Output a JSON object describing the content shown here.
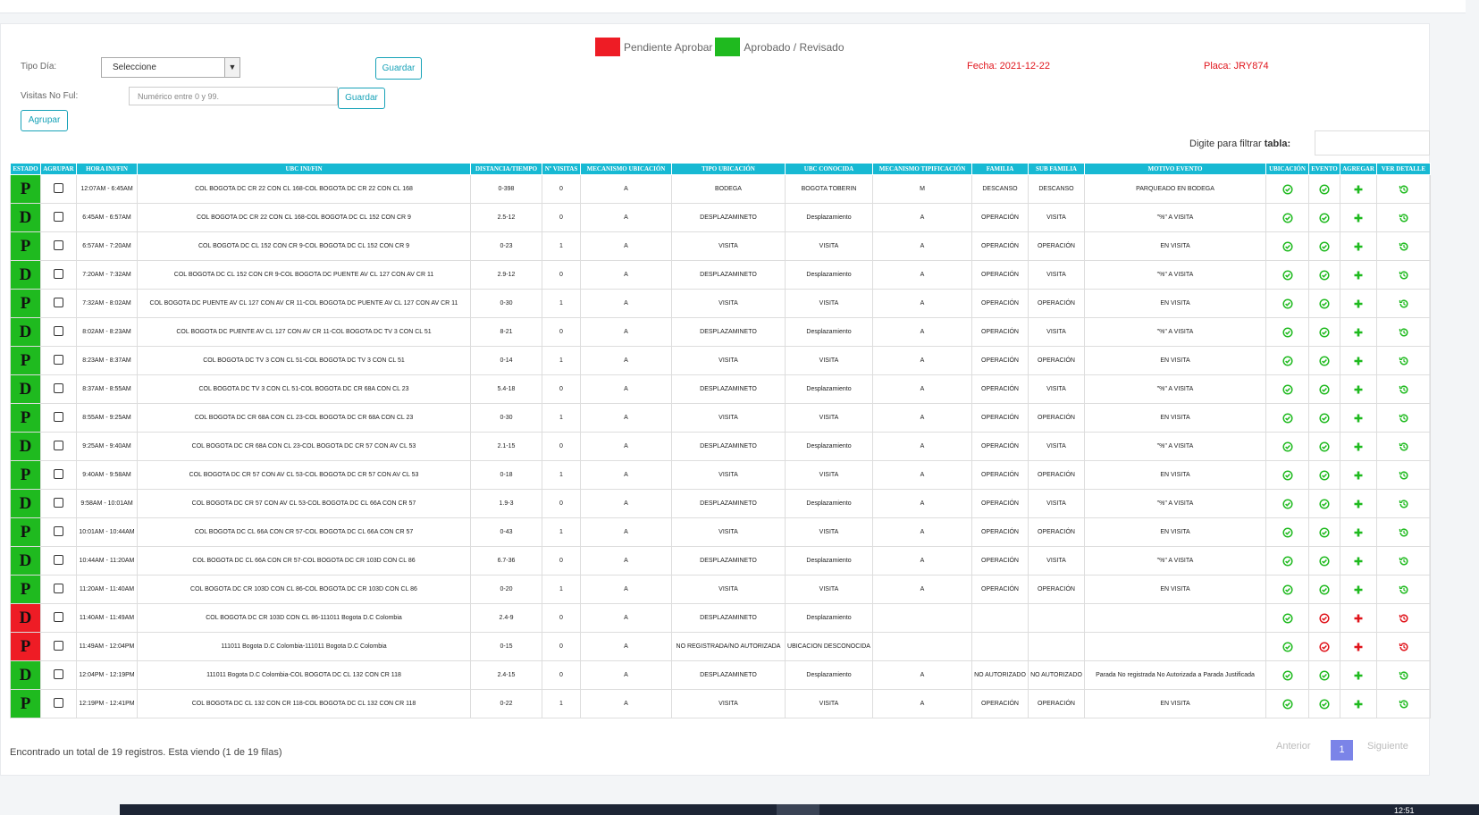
{
  "legend": {
    "pending": "Pendiente Aprobar",
    "approved": "Aprobado / Revisado",
    "pending_color": "#ee1c25",
    "approved_color": "#1fba1f"
  },
  "form": {
    "tipo_dia_label": "Tipo Día:",
    "tipo_dia_value": "Seleccione",
    "visitas_label": "Visitas No Ful:",
    "visitas_placeholder": "Numérico entre 0 y 99.",
    "guardar": "Guardar",
    "agrupar": "Agrupar"
  },
  "info": {
    "fecha": "Fecha: 2021-12-22",
    "placa": "Placa: JRY874"
  },
  "filter": {
    "label": "Digite para filtrar ",
    "label_bold": "tabla:"
  },
  "columns": [
    "ESTADO",
    "AGRUPAR",
    "HORA INI/FIN",
    "UBC INI/FIN",
    "DISTANCIA/TIEMPO",
    "Nº VISITAS",
    "MECANISMO UBICACIÓN",
    "TIPO UBICACIÓN",
    "UBC CONOCIDA",
    "MECANISMO TIPIFICACIÓN",
    "FAMILIA",
    "SUB FAMILIA",
    "MOTIVO EVENTO",
    "UBICACIÓN",
    "EVENTO",
    "AGREGAR",
    "VER DETALLE"
  ],
  "rows": [
    {
      "estado": "P",
      "color": "g",
      "hora": "12:07AM - 6:45AM",
      "ubc": "COL BOGOTA DC CR 22 CON CL 168-COL BOGOTA DC CR 22 CON CL 168",
      "dist": "0-398",
      "visitas": "0",
      "mec": "A",
      "tipo": "BODEGA",
      "conocida": "BOGOTA TOBERIN",
      "tip": "M",
      "familia": "DESCANSO",
      "sub": "DESCANSO",
      "motivo": "PARQUEADO EN BODEGA",
      "ok": true
    },
    {
      "estado": "D",
      "color": "g",
      "hora": "6:45AM - 6:57AM",
      "ubc": "COL BOGOTA DC CR 22 CON CL 168-COL BOGOTA DC CL 152 CON CR 9",
      "dist": "2.5-12",
      "visitas": "0",
      "mec": "A",
      "tipo": "DESPLAZAMINETO",
      "conocida": "Desplazamiento",
      "tip": "A",
      "familia": "OPERACIÓN",
      "sub": "VISITA",
      "motivo": "\"%\" A VISITA",
      "ok": true
    },
    {
      "estado": "P",
      "color": "g",
      "hora": "6:57AM - 7:20AM",
      "ubc": "COL BOGOTA DC CL 152 CON CR 9-COL BOGOTA DC CL 152 CON CR 9",
      "dist": "0-23",
      "visitas": "1",
      "mec": "A",
      "tipo": "VISITA",
      "conocida": "VISITA",
      "tip": "A",
      "familia": "OPERACIÓN",
      "sub": "OPERACIÓN",
      "motivo": "EN VISITA",
      "ok": true
    },
    {
      "estado": "D",
      "color": "g",
      "hora": "7:20AM - 7:32AM",
      "ubc": "COL BOGOTA DC CL 152 CON CR 9-COL BOGOTA DC PUENTE AV CL 127 CON AV CR 11",
      "dist": "2.9-12",
      "visitas": "0",
      "mec": "A",
      "tipo": "DESPLAZAMINETO",
      "conocida": "Desplazamiento",
      "tip": "A",
      "familia": "OPERACIÓN",
      "sub": "VISITA",
      "motivo": "\"%\" A VISITA",
      "ok": true
    },
    {
      "estado": "P",
      "color": "g",
      "hora": "7:32AM - 8:02AM",
      "ubc": "COL BOGOTA DC PUENTE AV CL 127 CON AV CR 11-COL BOGOTA DC PUENTE AV CL 127 CON AV CR 11",
      "dist": "0-30",
      "visitas": "1",
      "mec": "A",
      "tipo": "VISITA",
      "conocida": "VISITA",
      "tip": "A",
      "familia": "OPERACIÓN",
      "sub": "OPERACIÓN",
      "motivo": "EN VISITA",
      "ok": true
    },
    {
      "estado": "D",
      "color": "g",
      "hora": "8:02AM - 8:23AM",
      "ubc": "COL BOGOTA DC PUENTE AV CL 127 CON AV CR 11-COL BOGOTA DC TV 3 CON CL 51",
      "dist": "8-21",
      "visitas": "0",
      "mec": "A",
      "tipo": "DESPLAZAMINETO",
      "conocida": "Desplazamiento",
      "tip": "A",
      "familia": "OPERACIÓN",
      "sub": "VISITA",
      "motivo": "\"%\" A VISITA",
      "ok": true
    },
    {
      "estado": "P",
      "color": "g",
      "hora": "8:23AM - 8:37AM",
      "ubc": "COL BOGOTA DC TV 3 CON CL 51-COL BOGOTA DC TV 3 CON CL 51",
      "dist": "0-14",
      "visitas": "1",
      "mec": "A",
      "tipo": "VISITA",
      "conocida": "VISITA",
      "tip": "A",
      "familia": "OPERACIÓN",
      "sub": "OPERACIÓN",
      "motivo": "EN VISITA",
      "ok": true
    },
    {
      "estado": "D",
      "color": "g",
      "hora": "8:37AM - 8:55AM",
      "ubc": "COL BOGOTA DC TV 3 CON CL 51-COL BOGOTA DC CR 68A CON CL 23",
      "dist": "5.4-18",
      "visitas": "0",
      "mec": "A",
      "tipo": "DESPLAZAMINETO",
      "conocida": "Desplazamiento",
      "tip": "A",
      "familia": "OPERACIÓN",
      "sub": "VISITA",
      "motivo": "\"%\" A VISITA",
      "ok": true
    },
    {
      "estado": "P",
      "color": "g",
      "hora": "8:55AM - 9:25AM",
      "ubc": "COL BOGOTA DC CR 68A CON CL 23-COL BOGOTA DC CR 68A CON CL 23",
      "dist": "0-30",
      "visitas": "1",
      "mec": "A",
      "tipo": "VISITA",
      "conocida": "VISITA",
      "tip": "A",
      "familia": "OPERACIÓN",
      "sub": "OPERACIÓN",
      "motivo": "EN VISITA",
      "ok": true
    },
    {
      "estado": "D",
      "color": "g",
      "hora": "9:25AM - 9:40AM",
      "ubc": "COL BOGOTA DC CR 68A CON CL 23-COL BOGOTA DC CR 57 CON AV CL 53",
      "dist": "2.1-15",
      "visitas": "0",
      "mec": "A",
      "tipo": "DESPLAZAMINETO",
      "conocida": "Desplazamiento",
      "tip": "A",
      "familia": "OPERACIÓN",
      "sub": "VISITA",
      "motivo": "\"%\" A VISITA",
      "ok": true
    },
    {
      "estado": "P",
      "color": "g",
      "hora": "9:40AM - 9:58AM",
      "ubc": "COL BOGOTA DC CR 57 CON AV CL 53-COL BOGOTA DC CR 57 CON AV CL 53",
      "dist": "0-18",
      "visitas": "1",
      "mec": "A",
      "tipo": "VISITA",
      "conocida": "VISITA",
      "tip": "A",
      "familia": "OPERACIÓN",
      "sub": "OPERACIÓN",
      "motivo": "EN VISITA",
      "ok": true
    },
    {
      "estado": "D",
      "color": "g",
      "hora": "9:58AM - 10:01AM",
      "ubc": "COL BOGOTA DC CR 57 CON AV CL 53-COL BOGOTA DC CL 66A CON CR 57",
      "dist": "1.9-3",
      "visitas": "0",
      "mec": "A",
      "tipo": "DESPLAZAMINETO",
      "conocida": "Desplazamiento",
      "tip": "A",
      "familia": "OPERACIÓN",
      "sub": "VISITA",
      "motivo": "\"%\" A VISITA",
      "ok": true
    },
    {
      "estado": "P",
      "color": "g",
      "hora": "10:01AM - 10:44AM",
      "ubc": "COL BOGOTA DC CL 66A CON CR 57-COL BOGOTA DC CL 66A CON CR 57",
      "dist": "0-43",
      "visitas": "1",
      "mec": "A",
      "tipo": "VISITA",
      "conocida": "VISITA",
      "tip": "A",
      "familia": "OPERACIÓN",
      "sub": "OPERACIÓN",
      "motivo": "EN VISITA",
      "ok": true
    },
    {
      "estado": "D",
      "color": "g",
      "hora": "10:44AM - 11:20AM",
      "ubc": "COL BOGOTA DC CL 66A CON CR 57-COL BOGOTA DC CR 103D CON CL 86",
      "dist": "6.7-36",
      "visitas": "0",
      "mec": "A",
      "tipo": "DESPLAZAMINETO",
      "conocida": "Desplazamiento",
      "tip": "A",
      "familia": "OPERACIÓN",
      "sub": "VISITA",
      "motivo": "\"%\" A VISITA",
      "ok": true
    },
    {
      "estado": "P",
      "color": "g",
      "hora": "11:20AM - 11:40AM",
      "ubc": "COL BOGOTA DC CR 103D CON CL 86-COL BOGOTA DC CR 103D CON CL 86",
      "dist": "0-20",
      "visitas": "1",
      "mec": "A",
      "tipo": "VISITA",
      "conocida": "VISITA",
      "tip": "A",
      "familia": "OPERACIÓN",
      "sub": "OPERACIÓN",
      "motivo": "EN VISITA",
      "ok": true
    },
    {
      "estado": "D",
      "color": "r",
      "hora": "11:40AM - 11:49AM",
      "ubc": "COL BOGOTA DC CR 103D CON CL 86-111011 Bogota D.C Colombia",
      "dist": "2.4-9",
      "visitas": "0",
      "mec": "A",
      "tipo": "DESPLAZAMINETO",
      "conocida": "Desplazamiento",
      "tip": "",
      "familia": "",
      "sub": "",
      "motivo": "",
      "ok": false
    },
    {
      "estado": "P",
      "color": "r",
      "hora": "11:49AM - 12:04PM",
      "ubc": "111011 Bogota D.C Colombia-111011 Bogota D.C Colombia",
      "dist": "0-15",
      "visitas": "0",
      "mec": "A",
      "tipo": "NO REGISTRADA/NO AUTORIZADA",
      "conocida": "UBICACION DESCONOCIDA",
      "tip": "",
      "familia": "",
      "sub": "",
      "motivo": "",
      "ok": false
    },
    {
      "estado": "D",
      "color": "g",
      "hora": "12:04PM - 12:19PM",
      "ubc": "111011 Bogota D.C Colombia-COL BOGOTA DC CL 132 CON CR 118",
      "dist": "2.4-15",
      "visitas": "0",
      "mec": "A",
      "tipo": "DESPLAZAMINETO",
      "conocida": "Desplazamiento",
      "tip": "A",
      "familia": "NO AUTORIZADO",
      "sub": "NO AUTORIZADO",
      "motivo": "Parada No registrada No Autorizada a Parada Justificada",
      "ok": true
    },
    {
      "estado": "P",
      "color": "g",
      "hora": "12:19PM - 12:41PM",
      "ubc": "COL BOGOTA DC CL 132 CON CR 118-COL BOGOTA DC CL 132 CON CR 118",
      "dist": "0-22",
      "visitas": "1",
      "mec": "A",
      "tipo": "VISITA",
      "conocida": "VISITA",
      "tip": "A",
      "familia": "OPERACIÓN",
      "sub": "OPERACIÓN",
      "motivo": "EN VISITA",
      "ok": true
    }
  ],
  "footer": {
    "summary": "Encontrado un total de 19 registros. Esta viendo (1 de 19 filas)",
    "prev": "Anterior",
    "page": "1",
    "next": "Siguiente"
  },
  "taskbar": {
    "clock": "12:51"
  }
}
